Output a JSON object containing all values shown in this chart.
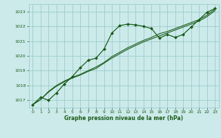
{
  "bg_color": "#cceaea",
  "grid_color": "#99cccc",
  "line_color": "#1a5c1a",
  "marker_color": "#1a5c1a",
  "text_color": "#1a5c1a",
  "xlabel": "Graphe pression niveau de la mer (hPa)",
  "ylim": [
    1016.5,
    1023.5
  ],
  "xlim": [
    -0.5,
    23.5
  ],
  "yticks": [
    1017,
    1018,
    1019,
    1020,
    1021,
    1022,
    1023
  ],
  "xticks": [
    0,
    1,
    2,
    3,
    4,
    5,
    6,
    7,
    8,
    9,
    10,
    11,
    12,
    13,
    14,
    15,
    16,
    17,
    18,
    19,
    20,
    21,
    22,
    23
  ],
  "series1_x": [
    0,
    1,
    2,
    3,
    4,
    5,
    6,
    7,
    8,
    9,
    10,
    11,
    12,
    13,
    14,
    15,
    16,
    17,
    18,
    19,
    20,
    21,
    22,
    23
  ],
  "series1_y": [
    1016.7,
    1017.2,
    1017.0,
    1017.5,
    1018.1,
    1018.6,
    1019.2,
    1019.7,
    1019.85,
    1020.45,
    1021.55,
    1022.05,
    1022.15,
    1022.1,
    1022.0,
    1021.85,
    1021.2,
    1021.45,
    1021.25,
    1021.45,
    1021.95,
    1022.45,
    1022.95,
    1023.2
  ],
  "series2_x": [
    0,
    1,
    2,
    3,
    4,
    5,
    6,
    7,
    8,
    9,
    10,
    11,
    12,
    13,
    14,
    15,
    16,
    17,
    18,
    19,
    20,
    21,
    22,
    23
  ],
  "series2_y": [
    1016.7,
    1017.05,
    1017.55,
    1017.95,
    1018.25,
    1018.5,
    1018.7,
    1018.95,
    1019.15,
    1019.5,
    1019.85,
    1020.15,
    1020.45,
    1020.7,
    1020.95,
    1021.15,
    1021.35,
    1021.55,
    1021.75,
    1021.95,
    1022.15,
    1022.35,
    1022.65,
    1023.05
  ],
  "series3_x": [
    0,
    1,
    2,
    3,
    4,
    5,
    6,
    7,
    8,
    9,
    10,
    11,
    12,
    13,
    14,
    15,
    16,
    17,
    18,
    19,
    20,
    21,
    22,
    23
  ],
  "series3_y": [
    1016.7,
    1017.05,
    1017.6,
    1018.0,
    1018.3,
    1018.55,
    1018.75,
    1019.0,
    1019.25,
    1019.55,
    1019.95,
    1020.25,
    1020.55,
    1020.8,
    1021.05,
    1021.25,
    1021.5,
    1021.65,
    1021.85,
    1022.05,
    1022.25,
    1022.45,
    1022.75,
    1023.15
  ]
}
